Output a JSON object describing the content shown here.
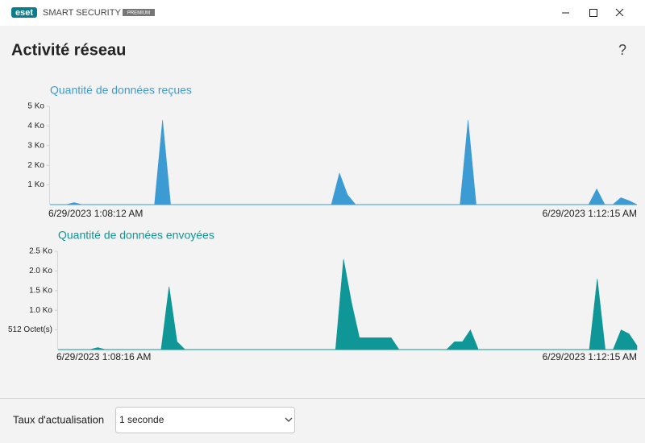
{
  "app": {
    "logo": "eset",
    "product": "SMART SECURITY",
    "edition": "PREMIUM"
  },
  "page": {
    "title": "Activité réseau",
    "help": "?"
  },
  "footer": {
    "label": "Taux d'actualisation",
    "select": "1 seconde"
  },
  "chart_data": [
    {
      "type": "area",
      "title": "Quantité de données reçues",
      "color": "#3d9bd4",
      "categories": [
        "6/29/2023 1:08:12 AM",
        null,
        null,
        null,
        null,
        null,
        null,
        null,
        null,
        null,
        null,
        null,
        null,
        null,
        null,
        null,
        null,
        null,
        null,
        null,
        null,
        null,
        null,
        null,
        null,
        null,
        null,
        null,
        null,
        null,
        null,
        null,
        null,
        null,
        null,
        null,
        null,
        null,
        null,
        null,
        null,
        null,
        null,
        null,
        null,
        null,
        null,
        null,
        null,
        null,
        null,
        null,
        null,
        null,
        null,
        null,
        null,
        null,
        null,
        null,
        null,
        null,
        null,
        null,
        null,
        null,
        null,
        null,
        null,
        null,
        null,
        null,
        null,
        "6/29/2023 1:12:15 AM"
      ],
      "values": [
        0,
        0,
        0,
        0.1,
        0,
        0,
        0,
        0,
        0,
        0,
        0,
        0,
        0,
        0,
        4.3,
        0,
        0,
        0,
        0,
        0,
        0,
        0,
        0,
        0,
        0,
        0,
        0,
        0,
        0,
        0,
        0,
        0,
        0,
        0,
        0,
        0,
        1.6,
        0.5,
        0,
        0,
        0,
        0,
        0,
        0,
        0,
        0,
        0,
        0,
        0,
        0,
        0,
        0,
        4.3,
        0,
        0,
        0,
        0,
        0,
        0,
        0,
        0,
        0,
        0,
        0,
        0,
        0,
        0,
        0,
        0.8,
        0,
        0,
        0.35,
        0.2,
        0
      ],
      "ylim": [
        0,
        5
      ],
      "yticks": [
        {
          "value": 1,
          "label": "1 Ko"
        },
        {
          "value": 2,
          "label": "2 Ko"
        },
        {
          "value": 3,
          "label": "3 Ko"
        },
        {
          "value": 4,
          "label": "4 Ko"
        },
        {
          "value": 5,
          "label": "5 Ko"
        }
      ]
    },
    {
      "type": "area",
      "title": "Quantité de données envoyées",
      "color": "#0f9696",
      "categories": [
        "6/29/2023 1:08:16 AM",
        null,
        null,
        null,
        null,
        null,
        null,
        null,
        null,
        null,
        null,
        null,
        null,
        null,
        null,
        null,
        null,
        null,
        null,
        null,
        null,
        null,
        null,
        null,
        null,
        null,
        null,
        null,
        null,
        null,
        null,
        null,
        null,
        null,
        null,
        null,
        null,
        null,
        null,
        null,
        null,
        null,
        null,
        null,
        null,
        null,
        null,
        null,
        null,
        null,
        null,
        null,
        null,
        null,
        null,
        null,
        null,
        null,
        null,
        null,
        null,
        null,
        null,
        null,
        null,
        null,
        null,
        null,
        null,
        null,
        null,
        null,
        null,
        "6/29/2023 1:12:15 AM"
      ],
      "values": [
        0,
        0,
        0,
        0,
        0,
        0.05,
        0,
        0,
        0,
        0,
        0,
        0,
        0,
        0,
        1.6,
        0.2,
        0,
        0,
        0,
        0,
        0,
        0,
        0,
        0,
        0,
        0,
        0,
        0,
        0,
        0,
        0,
        0,
        0,
        0,
        0,
        0,
        2.3,
        1.2,
        0.3,
        0.3,
        0.3,
        0.3,
        0.3,
        0,
        0,
        0,
        0,
        0,
        0,
        0,
        0.2,
        0.2,
        0.5,
        0,
        0,
        0,
        0,
        0,
        0,
        0,
        0,
        0,
        0,
        0,
        0,
        0,
        0,
        0,
        1.8,
        0,
        0,
        0.5,
        0.4,
        0.1
      ],
      "ylim": [
        0,
        2.5
      ],
      "yticks": [
        {
          "value": 0.5,
          "label": "512 Octet(s)"
        },
        {
          "value": 1,
          "label": "1.0 Ko"
        },
        {
          "value": 1.5,
          "label": "1.5 Ko"
        },
        {
          "value": 2,
          "label": "2.0 Ko"
        },
        {
          "value": 2.5,
          "label": "2.5 Ko"
        }
      ]
    }
  ]
}
